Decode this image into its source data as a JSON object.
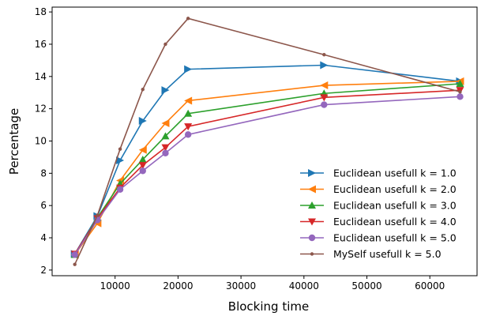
{
  "chart_data": {
    "type": "line",
    "title": "",
    "xlabel": "Blocking time",
    "ylabel": "Percentage",
    "xlim": [
      0,
      67500
    ],
    "ylim": [
      1.65,
      18.3
    ],
    "xticks": [
      10000,
      20000,
      30000,
      40000,
      50000,
      60000
    ],
    "yticks": [
      2,
      4,
      6,
      8,
      10,
      12,
      14,
      16,
      18
    ],
    "grid": false,
    "legend_position": "lower-right",
    "series": [
      {
        "name": "Euclidean usefull k = 1.0",
        "color": "#1f77b4",
        "marker": "triangle-right",
        "x": [
          3600,
          7200,
          10800,
          14400,
          18000,
          21600,
          43200,
          64800
        ],
        "y": [
          3.0,
          5.35,
          8.8,
          11.25,
          13.15,
          14.45,
          14.7,
          13.7
        ]
      },
      {
        "name": "Euclidean usefull k = 2.0",
        "color": "#ff7f0e",
        "marker": "triangle-left",
        "x": [
          3600,
          7200,
          10800,
          14400,
          18000,
          21600,
          43200,
          64800
        ],
        "y": [
          2.95,
          4.9,
          7.55,
          9.45,
          11.1,
          12.5,
          13.45,
          13.7
        ]
      },
      {
        "name": "Euclidean usefull k = 3.0",
        "color": "#2ca02c",
        "marker": "triangle-up",
        "x": [
          3600,
          7200,
          10800,
          14400,
          18000,
          21600,
          43200,
          64800
        ],
        "y": [
          2.95,
          5.25,
          7.35,
          8.85,
          10.3,
          11.7,
          12.95,
          13.55
        ]
      },
      {
        "name": "Euclidean usefull k = 4.0",
        "color": "#d62728",
        "marker": "triangle-down",
        "x": [
          3600,
          7200,
          10800,
          14400,
          18000,
          21600,
          43200,
          64800
        ],
        "y": [
          3.0,
          5.2,
          7.1,
          8.5,
          9.6,
          10.9,
          12.7,
          13.15
        ]
      },
      {
        "name": "Euclidean usefull k = 5.0",
        "color": "#9467bd",
        "marker": "circle",
        "x": [
          3600,
          7200,
          10800,
          14400,
          18000,
          21600,
          43200,
          64800
        ],
        "y": [
          2.95,
          5.1,
          7.0,
          8.15,
          9.25,
          10.4,
          12.25,
          12.75
        ]
      },
      {
        "name": "MySelf usefull k = 5.0",
        "color": "#8c564b",
        "marker": "small-dot",
        "x": [
          3600,
          7200,
          10800,
          14400,
          18000,
          21600,
          43200,
          64800
        ],
        "y": [
          2.35,
          5.4,
          9.5,
          13.2,
          16.0,
          17.6,
          15.35,
          13.05
        ]
      }
    ]
  }
}
